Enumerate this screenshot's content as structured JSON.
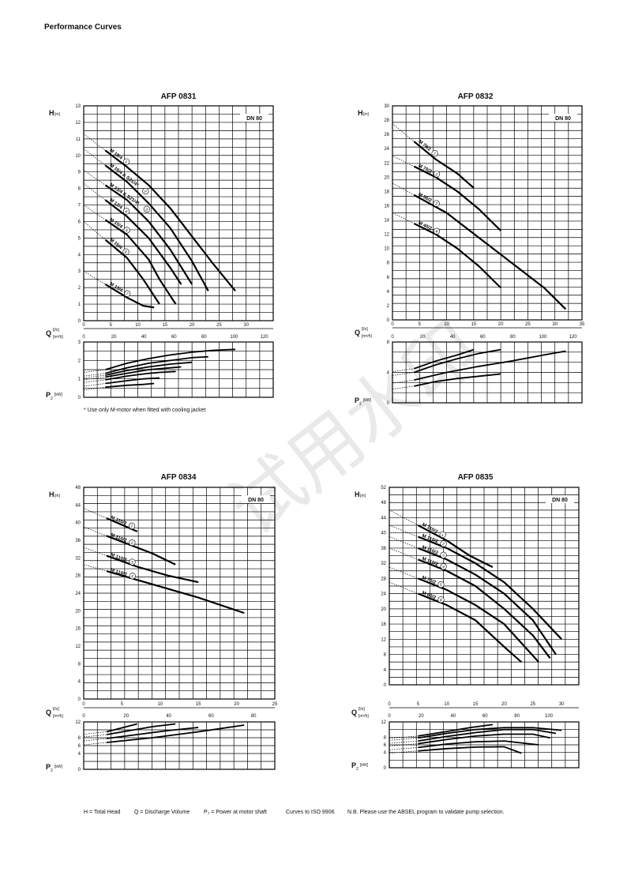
{
  "page": {
    "title": "Performance Curves",
    "note": "* Use only M-motor when fitted with cooling jacket",
    "watermark": "试用水印",
    "footer": {
      "h": "H = Total Head",
      "q": "Q = Discharge Volume",
      "p2": "P₂ = Power at motor shaft",
      "iso": "Curves to ISO 9906",
      "nb": "N.B. Please use the ABSEL program to validate pump selection."
    }
  },
  "chart_data": [
    {
      "type": "line",
      "title": "AFP 0831",
      "tag": "DN 80",
      "h_label": "H",
      "h_unit": "[m]",
      "q_label": "Q",
      "q_unit_ls": "[l/s]",
      "q_unit_m3h": "[m³/h]",
      "p_label": "P",
      "p_unit": "[kW]",
      "ylim": [
        0,
        13
      ],
      "yticks": [
        0,
        1,
        2,
        3,
        4,
        5,
        6,
        7,
        8,
        9,
        10,
        11,
        12,
        13
      ],
      "xlim": [
        0,
        35
      ],
      "xticks_ls": [
        0,
        5,
        10,
        15,
        20,
        25,
        30
      ],
      "xticks_m3h": [
        0,
        20,
        40,
        60,
        80,
        100,
        120
      ],
      "plim": [
        0,
        3
      ],
      "pticks": [
        0,
        1,
        2,
        3
      ],
      "series": [
        {
          "name": "M 18/4",
          "num": "1",
          "x": [
            4,
            8,
            12,
            16,
            20,
            24,
            28
          ],
          "y": [
            10.3,
            9.3,
            8.2,
            6.8,
            5.1,
            3.4,
            1.8
          ],
          "p": [
            1.5,
            1.85,
            2.1,
            2.3,
            2.45,
            2.55,
            2.6
          ]
        },
        {
          "name": "M 16/4 & S21/4*",
          "num": "2",
          "x": [
            4,
            8,
            12,
            16,
            20,
            23
          ],
          "y": [
            9.4,
            8.4,
            7.1,
            5.6,
            3.6,
            1.8
          ],
          "p": [
            1.3,
            1.6,
            1.85,
            2.0,
            2.15,
            2.2
          ]
        },
        {
          "name": "M 13/4 & S21/4*",
          "num": "3",
          "x": [
            4,
            8,
            12,
            16,
            20
          ],
          "y": [
            8.2,
            7.3,
            6.0,
            4.3,
            2.2
          ],
          "p": [
            1.2,
            1.45,
            1.65,
            1.8,
            1.9
          ]
        },
        {
          "name": "M 12/4",
          "num": "4",
          "x": [
            4,
            8,
            12,
            16,
            18
          ],
          "y": [
            7.3,
            6.3,
            5.0,
            3.2,
            2.2
          ],
          "p": [
            1.1,
            1.3,
            1.5,
            1.6,
            1.65
          ]
        },
        {
          "name": "M 15/4",
          "num": "5",
          "x": [
            4,
            8,
            12,
            14,
            17
          ],
          "y": [
            6.1,
            5.2,
            3.7,
            2.5,
            1.0
          ],
          "p": [
            0.95,
            1.15,
            1.3,
            1.35,
            1.4
          ]
        },
        {
          "name": "M 15/4",
          "num": "6",
          "x": [
            4,
            8,
            11,
            14
          ],
          "y": [
            4.9,
            3.8,
            2.5,
            1.0
          ],
          "p": [
            0.75,
            0.9,
            1.0,
            1.05
          ]
        },
        {
          "name": "M 15/4",
          "num": "7",
          "x": [
            4,
            8,
            11,
            13
          ],
          "y": [
            2.2,
            1.4,
            0.9,
            0.8
          ],
          "p": [
            0.55,
            0.65,
            0.7,
            0.75
          ]
        }
      ]
    },
    {
      "type": "line",
      "title": "AFP 0832",
      "tag": "DN 80",
      "h_label": "H",
      "h_unit": "[m]",
      "q_label": "Q",
      "q_unit_ls": "[l/s]",
      "q_unit_m3h": "[m³/h]",
      "p_label": "P",
      "p_unit": "[kW]",
      "ylim": [
        0,
        30
      ],
      "yticks": [
        0,
        2,
        4,
        6,
        8,
        10,
        12,
        14,
        16,
        18,
        20,
        22,
        24,
        26,
        28,
        30
      ],
      "xlim": [
        0,
        35
      ],
      "xticks_ls": [
        0,
        5,
        10,
        15,
        20,
        25,
        30,
        35
      ],
      "xticks_m3h": [
        0,
        20,
        40,
        60,
        80,
        100,
        120
      ],
      "plim": [
        0,
        8
      ],
      "pticks": [
        0,
        4,
        8
      ],
      "series": [
        {
          "name": "M 78/2",
          "num": "1",
          "x": [
            4,
            8,
            12,
            15
          ],
          "y": [
            25,
            22.5,
            20.5,
            18.5
          ],
          "p": [
            4.5,
            5.5,
            6.3,
            7.0
          ]
        },
        {
          "name": "M 70/2",
          "num": "2",
          "x": [
            4,
            8,
            12,
            16,
            20
          ],
          "y": [
            21.5,
            20,
            18,
            15.5,
            12.5
          ],
          "p": [
            4.0,
            5.0,
            5.8,
            6.5,
            7.0
          ]
        },
        {
          "name": "M 50/2",
          "num": "3",
          "x": [
            4,
            10,
            16,
            22,
            28,
            32
          ],
          "y": [
            17.5,
            15,
            11.5,
            8,
            4.5,
            1.5
          ],
          "p": [
            3.0,
            4.0,
            4.8,
            5.5,
            6.3,
            6.8
          ]
        },
        {
          "name": "M 40/2",
          "num": "4",
          "x": [
            4,
            8,
            12,
            16,
            20
          ],
          "y": [
            13.5,
            12,
            10,
            7.5,
            4.5
          ],
          "p": [
            2.2,
            2.8,
            3.2,
            3.5,
            3.8
          ]
        }
      ]
    },
    {
      "type": "line",
      "title": "AFP 0834",
      "tag": "DN 80",
      "h_label": "H",
      "h_unit": "[m]",
      "q_label": "Q",
      "q_unit_ls": "[l/s]",
      "q_unit_m3h": "[m³/h]",
      "p_label": "P",
      "p_unit": "[kW]",
      "ylim": [
        0,
        48
      ],
      "yticks": [
        0,
        4,
        8,
        12,
        16,
        20,
        24,
        28,
        32,
        36,
        40,
        44,
        48
      ],
      "xlim": [
        0,
        25
      ],
      "xticks_ls": [
        0,
        5,
        10,
        15,
        20,
        25
      ],
      "xticks_m3h": [
        0,
        20,
        40,
        60,
        80
      ],
      "plim": [
        0,
        12
      ],
      "pticks": [
        0,
        4,
        6,
        8,
        12
      ],
      "series": [
        {
          "name": "M 110/2",
          "num": "1",
          "x": [
            3,
            5,
            7
          ],
          "y": [
            41,
            39.5,
            38
          ],
          "p": [
            9.5,
            10.5,
            11.5
          ]
        },
        {
          "name": "M 110/2",
          "num": "2",
          "x": [
            3,
            6,
            9,
            12
          ],
          "y": [
            37,
            35,
            33,
            30.5
          ],
          "p": [
            8.8,
            9.8,
            10.8,
            11.5
          ]
        },
        {
          "name": "M 110/2",
          "num": "3",
          "x": [
            3,
            7,
            11,
            15
          ],
          "y": [
            32.5,
            30,
            28,
            26.5
          ],
          "p": [
            7.8,
            8.8,
            9.8,
            10.6
          ]
        },
        {
          "name": "M 110/2",
          "num": "4",
          "x": [
            3,
            9,
            15,
            21
          ],
          "y": [
            29,
            26,
            23,
            19.5
          ],
          "p": [
            6.8,
            8.0,
            9.5,
            11.2
          ]
        }
      ]
    },
    {
      "type": "line",
      "title": "AFP 0835",
      "tag": "DN 80",
      "h_label": "H",
      "h_unit": "[m]",
      "q_label": "Q",
      "q_unit_ls": "[l/s]",
      "q_unit_m3h": "[m³/h]",
      "p_label": "P",
      "p_unit": "[kW]",
      "ylim": [
        0,
        52
      ],
      "yticks": [
        0,
        4,
        8,
        12,
        16,
        20,
        24,
        28,
        32,
        36,
        40,
        44,
        48,
        52
      ],
      "xlim": [
        0,
        33
      ],
      "xticks_ls": [
        0,
        5,
        10,
        15,
        20,
        25,
        30
      ],
      "xticks_m3h": [
        0,
        20,
        40,
        60,
        80,
        100,
        120
      ],
      "plim": [
        0,
        12
      ],
      "pticks": [
        0,
        4,
        6,
        8,
        12
      ],
      "series": [
        {
          "name": "M 110/2",
          "num": "1",
          "x": [
            5,
            10,
            14,
            18
          ],
          "y": [
            42,
            38,
            34,
            31
          ],
          "p": [
            8.3,
            9.5,
            10.5,
            11.3
          ]
        },
        {
          "name": "M 110/2",
          "num": "2",
          "x": [
            5,
            10,
            15,
            20,
            25,
            30
          ],
          "y": [
            39,
            36,
            32,
            27,
            20,
            12
          ],
          "p": [
            7.8,
            9,
            10,
            10.5,
            10.5,
            9.8
          ]
        },
        {
          "name": "M 110/2",
          "num": "3",
          "x": [
            5,
            10,
            15,
            20,
            25,
            29
          ],
          "y": [
            36,
            33,
            29,
            24,
            17,
            8
          ],
          "p": [
            7,
            8.2,
            9.2,
            10,
            10,
            9
          ]
        },
        {
          "name": "M 110/2",
          "num": "4",
          "x": [
            5,
            10,
            15,
            20,
            25,
            28
          ],
          "y": [
            33,
            30,
            26,
            20,
            13,
            7
          ],
          "p": [
            6.3,
            7.4,
            8.3,
            8.8,
            8.8,
            7.8
          ]
        },
        {
          "name": "M 70/2",
          "num": "5",
          "x": [
            5,
            10,
            15,
            20,
            26
          ],
          "y": [
            28,
            25,
            21,
            16,
            6
          ],
          "p": [
            5.3,
            6.2,
            6.8,
            7,
            6
          ]
        },
        {
          "name": "M 60/2",
          "num": "6",
          "x": [
            5,
            10,
            15,
            20,
            23
          ],
          "y": [
            24,
            21,
            17,
            10,
            6
          ],
          "p": [
            4.4,
            5,
            5.4,
            5.5,
            3.8
          ]
        }
      ]
    }
  ]
}
